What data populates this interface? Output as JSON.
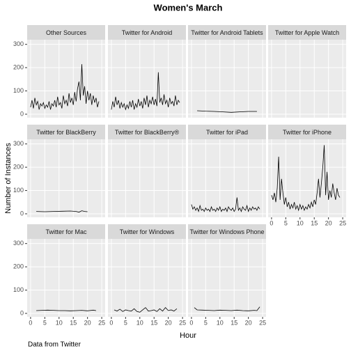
{
  "chart_data": {
    "type": "line",
    "title": "Women's March",
    "xlabel": "Hour",
    "ylabel": "Number of Instances",
    "caption": "Data from Twitter",
    "xlim": [
      -1.2,
      26.2
    ],
    "xticks": [
      0,
      5,
      10,
      15,
      20,
      25
    ],
    "ylim": [
      -15,
      320
    ],
    "yticks": [
      0,
      100,
      200,
      300
    ],
    "grid": true,
    "color": "#000000",
    "series": [
      {
        "name": "Other Sources",
        "x": [
          0,
          0.5,
          1,
          1.5,
          2,
          2.5,
          3,
          3.5,
          4,
          4.5,
          5,
          5.5,
          6,
          6.5,
          7,
          7.5,
          8,
          8.5,
          9,
          9.5,
          10,
          10.5,
          11,
          11.5,
          12,
          12.5,
          13,
          13.5,
          14,
          14.5,
          15,
          15.5,
          16,
          16.5,
          17,
          17.5,
          18,
          18.5,
          19,
          19.5,
          20,
          20.5,
          21,
          21.5,
          22,
          22.5,
          23,
          23.5,
          24
        ],
        "values": [
          30,
          60,
          25,
          70,
          40,
          55,
          20,
          45,
          35,
          50,
          25,
          40,
          30,
          55,
          20,
          45,
          35,
          60,
          30,
          75,
          40,
          50,
          25,
          80,
          45,
          60,
          35,
          90,
          50,
          70,
          40,
          95,
          55,
          110,
          140,
          60,
          215,
          80,
          120,
          45,
          100,
          60,
          90,
          40,
          80,
          50,
          70,
          30,
          55
        ]
      },
      {
        "name": "Twitter for Android",
        "x": [
          0,
          0.5,
          1,
          1.5,
          2,
          2.5,
          3,
          3.5,
          4,
          4.5,
          5,
          5.5,
          6,
          6.5,
          7,
          7.5,
          8,
          8.5,
          9,
          9.5,
          10,
          10.5,
          11,
          11.5,
          12,
          12.5,
          13,
          13.5,
          14,
          14.5,
          15,
          15.5,
          16,
          16.5,
          17,
          17.5,
          18,
          18.5,
          19,
          19.5,
          20,
          20.5,
          21,
          21.5,
          22,
          22.5,
          23,
          23.5,
          24
        ],
        "values": [
          20,
          55,
          30,
          75,
          40,
          60,
          25,
          50,
          30,
          45,
          20,
          40,
          25,
          55,
          30,
          60,
          20,
          45,
          30,
          65,
          35,
          55,
          25,
          70,
          40,
          80,
          30,
          60,
          45,
          75,
          40,
          65,
          35,
          180,
          50,
          70,
          40,
          85,
          45,
          60,
          30,
          70,
          45,
          55,
          35,
          80,
          40,
          60,
          50
        ]
      },
      {
        "name": "Twitter for Android Tablets",
        "x": [
          2,
          5,
          8,
          11,
          14,
          17,
          20,
          23
        ],
        "values": [
          15,
          13,
          12,
          10,
          8,
          10,
          12,
          12
        ]
      },
      {
        "name": "Twitter for Apple Watch",
        "x": [],
        "values": []
      },
      {
        "name": "Twitter for BlackBerry",
        "x": [
          2,
          5,
          8,
          11,
          14,
          16,
          17,
          18,
          19,
          20
        ],
        "values": [
          10,
          9,
          10,
          11,
          12,
          10,
          7,
          13,
          10,
          9
        ]
      },
      {
        "name": "Twitter for BlackBerry®",
        "x": [],
        "values": []
      },
      {
        "name": "Twitter for iPad",
        "x": [
          0,
          0.5,
          1,
          1.5,
          2,
          2.5,
          3,
          3.5,
          4,
          4.5,
          5,
          5.5,
          6,
          6.5,
          7,
          7.5,
          8,
          8.5,
          9,
          9.5,
          10,
          10.5,
          11,
          11.5,
          12,
          12.5,
          13,
          13.5,
          14,
          14.5,
          15,
          15.5,
          16,
          16.5,
          17,
          17.5,
          18,
          18.5,
          19,
          19.5,
          20,
          20.5,
          21,
          21.5,
          22,
          22.5,
          23,
          23.5,
          24
        ],
        "values": [
          40,
          20,
          30,
          15,
          25,
          10,
          35,
          15,
          20,
          10,
          25,
          15,
          20,
          10,
          30,
          15,
          20,
          10,
          25,
          15,
          30,
          10,
          20,
          15,
          25,
          10,
          30,
          20,
          15,
          25,
          10,
          20,
          70,
          15,
          25,
          10,
          30,
          20,
          15,
          35,
          10,
          25,
          15,
          30,
          20,
          25,
          15,
          30,
          20
        ]
      },
      {
        "name": "Twitter for iPhone",
        "x": [
          0,
          0.5,
          1,
          1.5,
          2,
          2.5,
          3,
          3.5,
          4,
          4.5,
          5,
          5.5,
          6,
          6.5,
          7,
          7.5,
          8,
          8.5,
          9,
          9.5,
          10,
          10.5,
          11,
          11.5,
          12,
          12.5,
          13,
          13.5,
          14,
          14.5,
          15,
          15.5,
          16,
          16.5,
          17,
          17.5,
          18,
          18.5,
          19,
          19.5,
          20,
          20.5,
          21,
          21.5,
          22,
          22.5,
          23,
          23.5,
          24
        ],
        "values": [
          80,
          60,
          90,
          50,
          110,
          245,
          60,
          150,
          90,
          40,
          70,
          30,
          50,
          20,
          40,
          25,
          50,
          20,
          35,
          15,
          40,
          20,
          35,
          15,
          30,
          20,
          40,
          25,
          50,
          30,
          60,
          40,
          90,
          150,
          70,
          130,
          200,
          295,
          80,
          180,
          60,
          100,
          70,
          130,
          90,
          60,
          110,
          80,
          70
        ]
      },
      {
        "name": "Twitter for Mac",
        "x": [
          2,
          4,
          6,
          8,
          10,
          12,
          14,
          16,
          18,
          20,
          22,
          23
        ],
        "values": [
          12,
          13,
          14,
          13,
          12,
          12,
          11,
          12,
          13,
          11,
          14,
          12
        ]
      },
      {
        "name": "Twitter for Windows",
        "x": [
          1,
          2,
          3,
          4,
          5,
          6,
          7,
          8,
          9,
          10,
          11,
          12,
          13,
          14,
          15,
          16,
          17,
          18,
          19,
          20,
          21,
          22,
          23
        ],
        "values": [
          15,
          10,
          18,
          8,
          15,
          12,
          10,
          20,
          8,
          5,
          15,
          25,
          10,
          12,
          15,
          8,
          20,
          10,
          25,
          12,
          15,
          10,
          20
        ]
      },
      {
        "name": "Twitter for Windows Phone",
        "x": [
          1,
          2,
          4,
          6,
          8,
          10,
          12,
          14,
          16,
          18,
          20,
          22,
          23,
          24
        ],
        "values": [
          25,
          15,
          14,
          13,
          12,
          14,
          13,
          12,
          14,
          12,
          11,
          13,
          12,
          28
        ]
      }
    ]
  }
}
